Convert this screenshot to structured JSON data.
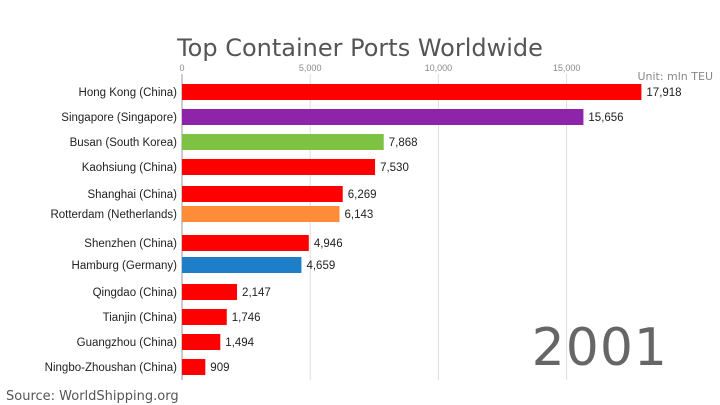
{
  "header": {
    "title": "Top Container Ports Worldwide"
  },
  "unit_label": "Unit: mln TEU",
  "year_label": "2001",
  "source_label": "Source: WorldShipping.org",
  "chart_data": {
    "type": "bar",
    "orientation": "horizontal",
    "title": "Top Container Ports Worldwide",
    "xlim": [
      0,
      18500
    ],
    "xticks": [
      0,
      5000,
      10000,
      15000
    ],
    "xtick_labels": [
      "0",
      "5,000",
      "10,000",
      "15,000"
    ],
    "grid": true,
    "categories": [
      "Hong Kong (China)",
      "Singapore (Singapore)",
      "Busan (South Korea)",
      "Kaohsiung (China)",
      "Shanghai (China)",
      "Rotterdam (Netherlands)",
      "Shenzhen (China)",
      "Hamburg (Germany)",
      "Qingdao (China)",
      "Tianjin (China)",
      "Guangzhou (China)",
      "Ningbo-Zhoushan (China)"
    ],
    "values": [
      17918,
      15656,
      7868,
      7530,
      6269,
      6143,
      4946,
      4659,
      2147,
      1746,
      1494,
      909
    ],
    "value_labels": [
      "17,918",
      "15,656",
      "7,868",
      "7,530",
      "6,269",
      "6,143",
      "4,946",
      "4,659",
      "2,147",
      "1,746",
      "1,494",
      "909"
    ],
    "colors": [
      "#ff0000",
      "#8e24aa",
      "#7dc242",
      "#ff0000",
      "#ff0000",
      "#ff8c38",
      "#ff0000",
      "#1e7fc8",
      "#ff0000",
      "#ff0000",
      "#ff0000",
      "#ff0000"
    ]
  }
}
